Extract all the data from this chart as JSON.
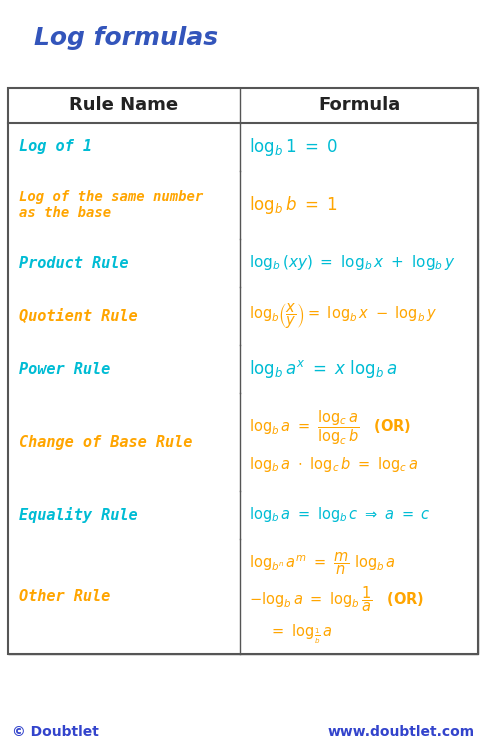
{
  "title": "Log formulas",
  "title_color": "#3355bb",
  "bg_color": "#ffffff",
  "border_color": "#555555",
  "header_bg": "#f0f0f0",
  "cyan": "#00bcd4",
  "orange": "#FFA500",
  "dark_blue": "#3355bb",
  "footer_color": "#3344cc",
  "rows": [
    {
      "name": "Log of 1",
      "name_color": "cyan",
      "formula_color": "cyan",
      "formula_lines": [
        "log_b 1 = 0"
      ]
    },
    {
      "name": "Log of the same number\nas the base",
      "name_color": "orange",
      "formula_color": "orange",
      "formula_lines": [
        "log_b b = 1"
      ]
    },
    {
      "name": "Product Rule",
      "name_color": "cyan",
      "formula_color": "cyan",
      "formula_lines": [
        "log_b(xy) = log_b x + log_b y"
      ]
    },
    {
      "name": "Quotient Rule",
      "name_color": "orange",
      "formula_color": "orange",
      "formula_lines": [
        "log_b(x/y) = log_b x - log_b y"
      ]
    },
    {
      "name": "Power Rule",
      "name_color": "cyan",
      "formula_color": "cyan",
      "formula_lines": [
        "log_b a^x = x log_b a"
      ]
    },
    {
      "name": "Change of Base Rule",
      "name_color": "orange",
      "formula_color": "orange",
      "formula_lines": [
        "log_b a = (log_c a)/(log_c b)  (OR)",
        "log_b a . log_c b = log_c a"
      ]
    },
    {
      "name": "Equality Rule",
      "name_color": "cyan",
      "formula_color": "cyan",
      "formula_lines": [
        "log_b a = log_b c => a = c"
      ]
    },
    {
      "name": "Other Rule",
      "name_color": "orange",
      "formula_color": "orange",
      "formula_lines": [
        "log_b^n a^m = (m/n) log_b a",
        "-log_b a = log_b (1/a)  (OR)",
        "= log_(1/b) a"
      ]
    }
  ]
}
